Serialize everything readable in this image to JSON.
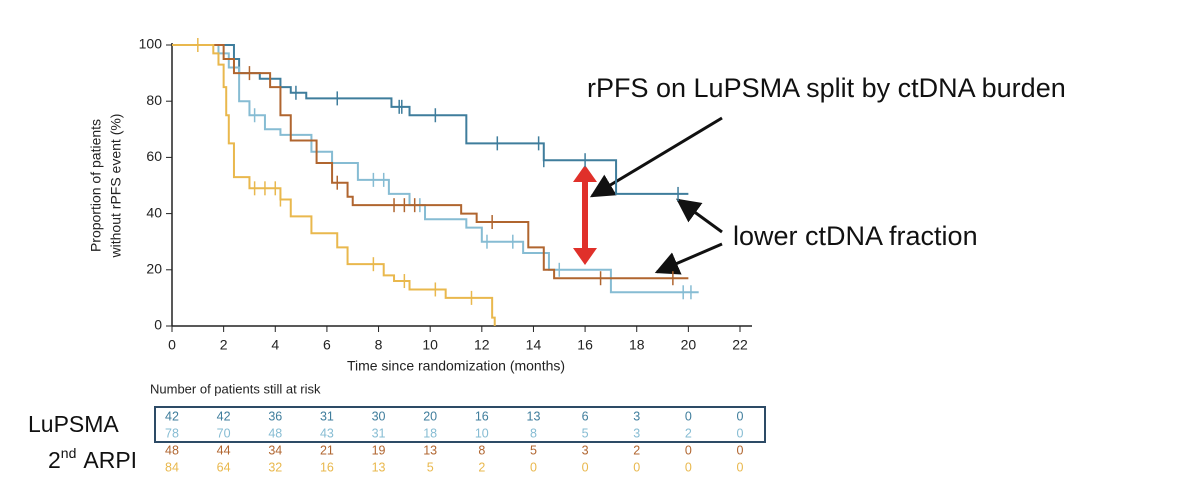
{
  "chart_data": {
    "type": "step",
    "xlabel": "Time since randomization (months)",
    "ylabel": [
      "Proportion of patients",
      "without rPFS event (%)"
    ],
    "xlim": [
      0,
      22
    ],
    "ylim": [
      0,
      100
    ],
    "xticks": [
      0,
      2,
      4,
      6,
      8,
      10,
      12,
      14,
      16,
      18,
      20,
      22
    ],
    "yticks": [
      0,
      20,
      40,
      60,
      80,
      100
    ],
    "series": [
      {
        "color": "#3f7d9c",
        "x": [
          0,
          2.4,
          2.6,
          3.4,
          4.2,
          4.6,
          5.2,
          8.5,
          9.2,
          11.4,
          14.4,
          17.2,
          20
        ],
        "values": [
          100,
          95,
          90,
          88,
          85,
          83,
          81,
          78,
          75,
          65,
          59,
          47,
          47
        ],
        "censored": [
          4.8,
          6.4,
          8.8,
          8.9,
          10.2,
          12.6,
          14.2,
          14.4,
          16,
          19.6
        ]
      },
      {
        "color": "#86bcd3",
        "x": [
          0,
          1.8,
          2.2,
          2.6,
          3,
          3.6,
          4.2,
          5.4,
          6.2,
          7.2,
          8.4,
          9.2,
          9.8,
          11.4,
          12,
          13.6,
          14.6,
          17,
          20.4
        ],
        "values": [
          100,
          97,
          92,
          80,
          75,
          70,
          68,
          62,
          58,
          52,
          47,
          43,
          38,
          35,
          30,
          26,
          20,
          12,
          12
        ],
        "censored": [
          3.2,
          6.2,
          7.8,
          8.2,
          9.6,
          12.2,
          13.2,
          15,
          19.8,
          20.1
        ]
      },
      {
        "color": "#b0652f",
        "x": [
          0,
          2,
          2.4,
          3.8,
          4.2,
          4.6,
          5.6,
          6.2,
          6.8,
          7,
          11.2,
          11.8,
          13.8,
          14.4,
          14.8,
          20
        ],
        "values": [
          100,
          95,
          90,
          85,
          75,
          66,
          58,
          51,
          46,
          43,
          40,
          37,
          28,
          20,
          17,
          17
        ],
        "censored": [
          3,
          6.4,
          8.6,
          9,
          9.4,
          12.4,
          16.6,
          19.4
        ]
      },
      {
        "color": "#e9b84d",
        "x": [
          0,
          1.6,
          1.8,
          2,
          2.1,
          2.2,
          2.4,
          3,
          4.2,
          4.6,
          5.4,
          6.4,
          6.8,
          8.2,
          8.6,
          9.2,
          10.6,
          12.4,
          12.5
        ],
        "values": [
          100,
          97,
          93,
          85,
          75,
          65,
          53,
          49,
          45,
          39,
          33,
          28,
          22,
          18,
          16,
          13,
          10,
          3,
          0
        ],
        "censored": [
          1,
          3.2,
          3.6,
          4,
          4.2,
          7.8,
          9,
          10.2,
          11.6
        ]
      }
    ],
    "annotations": [
      "rPFS on LuPSMA split by ctDNA burden",
      "lower ctDNA fraction"
    ],
    "risk_table": {
      "title": "Number of patients still at risk",
      "groups": [
        {
          "label": "LuPSMA"
        },
        {
          "label": "2",
          "sup": "nd",
          "rest": "ARPI"
        }
      ],
      "rows": [
        {
          "color": "#3f7d9c",
          "values": [
            42,
            42,
            36,
            31,
            30,
            20,
            16,
            13,
            6,
            3,
            0,
            0
          ]
        },
        {
          "color": "#86bcd3",
          "values": [
            78,
            70,
            48,
            43,
            31,
            18,
            10,
            8,
            5,
            3,
            2,
            0
          ]
        },
        {
          "color": "#b0652f",
          "values": [
            48,
            44,
            34,
            21,
            19,
            13,
            8,
            5,
            3,
            2,
            0,
            0
          ]
        },
        {
          "color": "#e9b84d",
          "values": [
            84,
            64,
            32,
            16,
            13,
            5,
            2,
            0,
            0,
            0,
            0,
            0
          ]
        }
      ]
    }
  }
}
